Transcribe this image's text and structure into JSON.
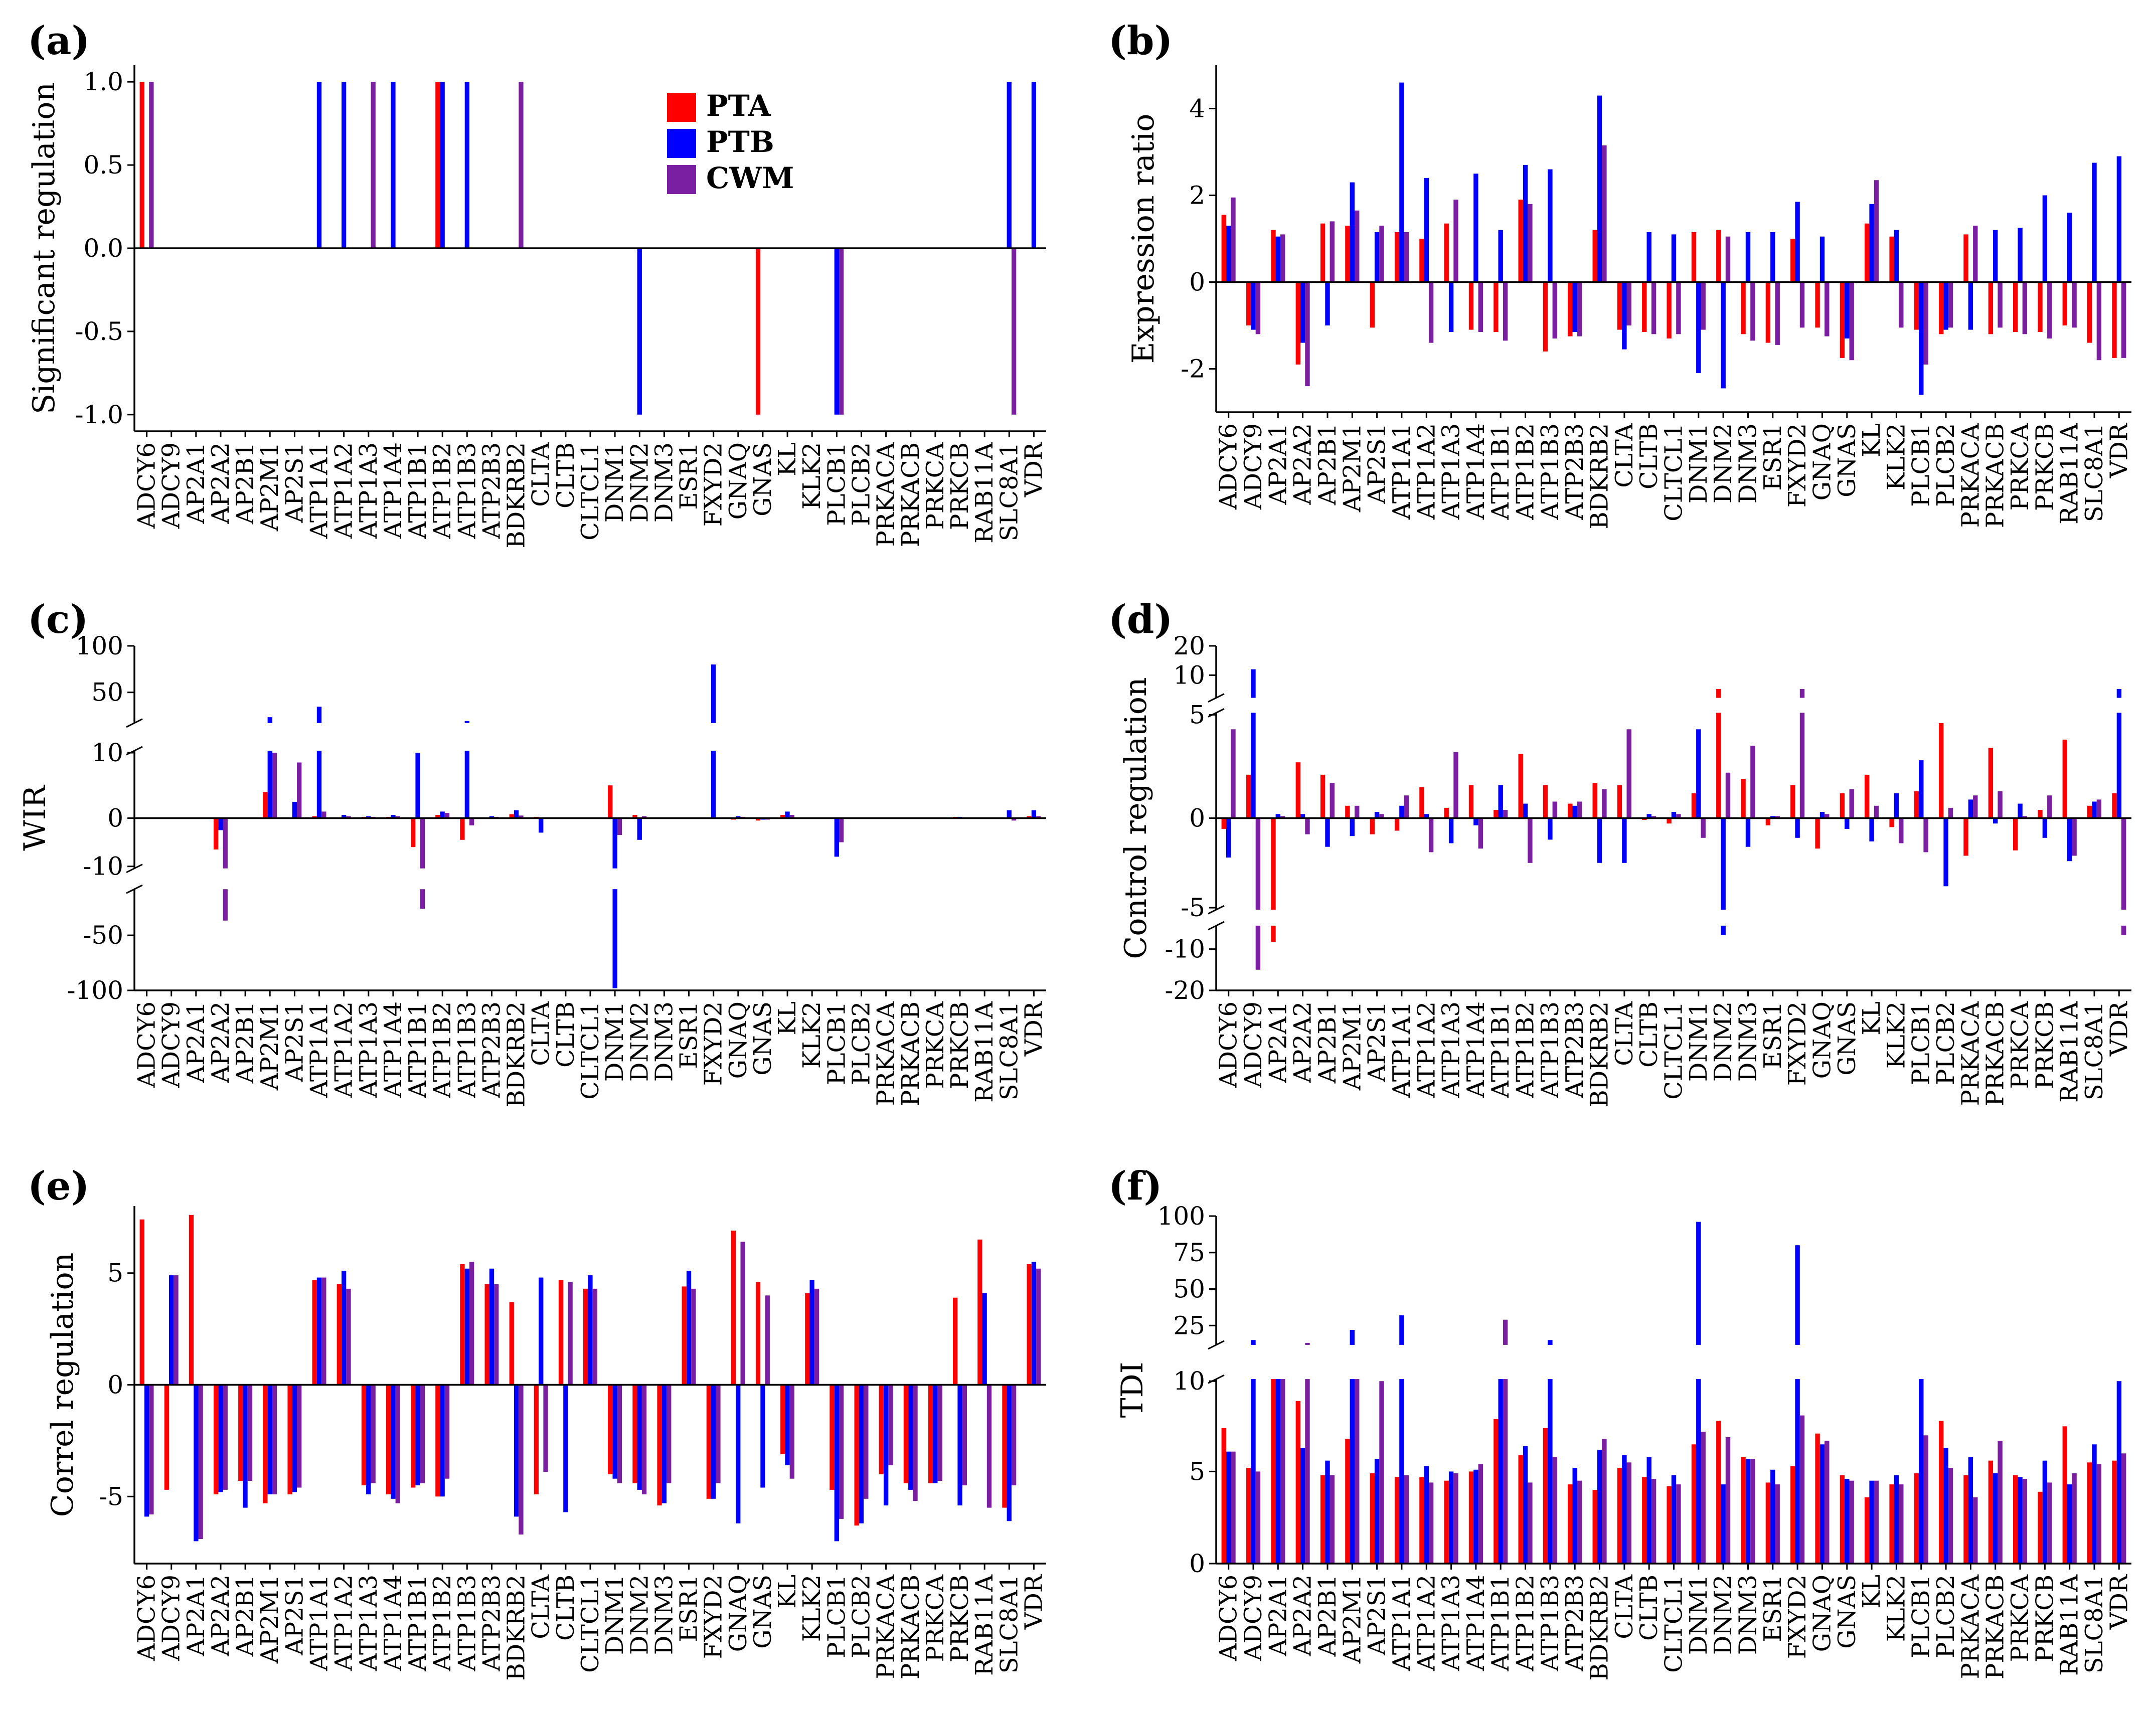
{
  "colors": {
    "PTA": "#ff0000",
    "PTB": "#0000ff",
    "CWM": "#7b1fa2"
  },
  "chart_data": [
    {
      "id": "a",
      "type": "bar",
      "panel_label": "(a)",
      "xlabel": "",
      "ylabel": "Significant regulation",
      "ylim": [
        -1.1,
        1.1
      ],
      "yticks": [
        -1.0,
        -0.5,
        0.0,
        0.5,
        1.0
      ],
      "ytick_labels": [
        "-1.0",
        "-0.5",
        "0.0",
        "0.5",
        "1.0"
      ],
      "legend": {
        "position": "top-center",
        "entries": [
          "PTA",
          "PTB",
          "CWM"
        ]
      },
      "categories": [
        "ADCY6",
        "ADCY9",
        "AP2A1",
        "AP2A2",
        "AP2B1",
        "AP2M1",
        "AP2S1",
        "ATP1A1",
        "ATP1A2",
        "ATP1A3",
        "ATP1A4",
        "ATP1B1",
        "ATP1B2",
        "ATP1B3",
        "ATP2B3",
        "BDKRB2",
        "CLTA",
        "CLTB",
        "CLTCL1",
        "DNM1",
        "DNM2",
        "DNM3",
        "ESR1",
        "FXYD2",
        "GNAQ",
        "GNAS",
        "KL",
        "KLK2",
        "PLCB1",
        "PLCB2",
        "PRKACA",
        "PRKACB",
        "PRKCA",
        "PRKCB",
        "RAB11A",
        "SLC8A1",
        "VDR"
      ],
      "series": [
        {
          "name": "PTA",
          "values": [
            1,
            0,
            0,
            0,
            0,
            0,
            0,
            0,
            0,
            0,
            0,
            0,
            1,
            0,
            0,
            0,
            0,
            0,
            0,
            0,
            0,
            0,
            0,
            0,
            0,
            -1,
            0,
            0,
            0,
            0,
            0,
            0,
            0,
            0,
            0,
            0,
            0
          ]
        },
        {
          "name": "PTB",
          "values": [
            0,
            0,
            0,
            0,
            0,
            0,
            0,
            1,
            1,
            0,
            1,
            0,
            1,
            1,
            0,
            0,
            0,
            0,
            0,
            0,
            -1,
            0,
            0,
            0,
            0,
            0,
            0,
            0,
            -1,
            0,
            0,
            0,
            0,
            0,
            0,
            1,
            1
          ]
        },
        {
          "name": "CWM",
          "values": [
            1,
            0,
            0,
            0,
            0,
            0,
            0,
            0,
            0,
            1,
            0,
            0,
            0,
            0,
            0,
            1,
            0,
            0,
            0,
            0,
            0,
            0,
            0,
            0,
            0,
            0,
            0,
            0,
            -1,
            0,
            0,
            0,
            0,
            0,
            0,
            -1,
            0
          ]
        }
      ]
    },
    {
      "id": "b",
      "type": "bar",
      "panel_label": "(b)",
      "xlabel": "",
      "ylabel": "Expression ratio",
      "ylim": [
        -3,
        5
      ],
      "yticks": [
        -2,
        0,
        2,
        4
      ],
      "ytick_labels": [
        "-2",
        "0",
        "2",
        "4"
      ],
      "categories": [
        "ADCY6",
        "ADCY9",
        "AP2A1",
        "AP2A2",
        "AP2B1",
        "AP2M1",
        "AP2S1",
        "ATP1A1",
        "ATP1A2",
        "ATP1A3",
        "ATP1A4",
        "ATP1B1",
        "ATP1B2",
        "ATP1B3",
        "ATP2B3",
        "BDKRB2",
        "CLTA",
        "CLTB",
        "CLTCL1",
        "DNM1",
        "DNM2",
        "DNM3",
        "ESR1",
        "FXYD2",
        "GNAQ",
        "GNAS",
        "KL",
        "KLK2",
        "PLCB1",
        "PLCB2",
        "PRKACA",
        "PRKACB",
        "PRKCA",
        "PRKCB",
        "RAB11A",
        "SLC8A1",
        "VDR"
      ],
      "series": [
        {
          "name": "PTA",
          "values": [
            1.55,
            -1.0,
            1.2,
            -1.9,
            1.35,
            1.3,
            -1.05,
            1.15,
            1.0,
            1.35,
            -1.1,
            -1.15,
            1.9,
            -1.6,
            -1.25,
            1.2,
            -1.1,
            -1.15,
            -1.3,
            1.15,
            1.2,
            -1.2,
            -1.4,
            1.0,
            -1.05,
            -1.75,
            1.35,
            1.05,
            -1.1,
            -1.2,
            1.1,
            -1.2,
            -1.15,
            -1.15,
            -1.0,
            -1.4,
            -1.75
          ]
        },
        {
          "name": "PTB",
          "values": [
            1.3,
            -1.1,
            1.05,
            -1.4,
            -1.0,
            2.3,
            1.15,
            4.6,
            2.4,
            -1.15,
            2.5,
            1.2,
            2.7,
            2.6,
            -1.15,
            4.3,
            -1.55,
            1.15,
            1.1,
            -2.1,
            -2.45,
            1.15,
            1.15,
            1.85,
            1.05,
            -1.3,
            1.8,
            1.2,
            -2.6,
            -1.1,
            -1.1,
            1.2,
            1.25,
            2.0,
            1.6,
            2.75,
            2.9
          ]
        },
        {
          "name": "CWM",
          "values": [
            1.95,
            -1.2,
            1.1,
            -2.4,
            1.4,
            1.65,
            1.3,
            1.15,
            -1.4,
            1.9,
            -1.15,
            -1.35,
            1.8,
            -1.3,
            -1.25,
            3.15,
            -1.0,
            -1.2,
            -1.2,
            -1.1,
            1.05,
            -1.35,
            -1.45,
            -1.05,
            -1.25,
            -1.8,
            2.35,
            -1.05,
            -1.9,
            -1.05,
            1.3,
            -1.05,
            -1.2,
            -1.3,
            -1.05,
            -1.8,
            -1.75
          ]
        }
      ]
    },
    {
      "id": "c",
      "type": "bar",
      "panel_label": "(c)",
      "xlabel": "",
      "ylabel": "WIR",
      "axis_note": "broken y-axis (breaks at 10/20 and -10/-20)",
      "ylim": [
        -100,
        100
      ],
      "yticks": [
        -100,
        -50,
        -10,
        0,
        10,
        50,
        100
      ],
      "ytick_labels": [
        "-100",
        "-50",
        "-10",
        "0",
        "10",
        "50",
        "100"
      ],
      "categories": [
        "ADCY6",
        "ADCY9",
        "AP2A1",
        "AP2A2",
        "AP2B1",
        "AP2M1",
        "AP2S1",
        "ATP1A1",
        "ATP1A2",
        "ATP1A3",
        "ATP1A4",
        "ATP1B1",
        "ATP1B2",
        "ATP1B3",
        "ATP2B3",
        "BDKRB2",
        "CLTA",
        "CLTB",
        "CLTCL1",
        "DNM1",
        "DNM2",
        "DNM3",
        "ESR1",
        "FXYD2",
        "GNAQ",
        "GNAS",
        "KL",
        "KLK2",
        "PLCB1",
        "PLCB2",
        "PRKACA",
        "PRKACB",
        "PRKCA",
        "PRKCB",
        "RAB11A",
        "SLC8A1",
        "VDR"
      ],
      "series": [
        {
          "name": "PTA",
          "values": [
            0,
            0,
            0,
            -6.5,
            0,
            4,
            0,
            0.3,
            0,
            0.2,
            0.2,
            -6,
            0.5,
            -4.5,
            0,
            0.6,
            0.2,
            0,
            0,
            5,
            0.5,
            0,
            0,
            0,
            -0.3,
            -0.5,
            0.5,
            0,
            0,
            0,
            0,
            0,
            0,
            0.2,
            0,
            0,
            0.3
          ]
        },
        {
          "name": "PTB",
          "values": [
            0,
            0,
            0,
            -2.5,
            0,
            24,
            2.5,
            35,
            0.5,
            0.3,
            0.5,
            10,
            1,
            20,
            0.3,
            1.2,
            -3,
            0,
            0,
            -98,
            -4.5,
            0,
            0,
            80,
            0.3,
            -0.3,
            1,
            0,
            -8,
            0,
            0,
            0,
            0,
            0.2,
            0,
            1.2,
            1.2
          ]
        },
        {
          "name": "CWM",
          "values": [
            0,
            0,
            0,
            -40,
            0,
            10,
            8.5,
            1,
            0.3,
            0.2,
            0.3,
            -32,
            0.8,
            -1.5,
            0.2,
            0.4,
            0,
            0,
            0,
            -3.5,
            0.3,
            0,
            0,
            0,
            0.2,
            -0.3,
            0.5,
            0,
            -5,
            0,
            0,
            0,
            0,
            0,
            0,
            -0.5,
            0.3
          ]
        }
      ]
    },
    {
      "id": "d",
      "type": "bar",
      "panel_label": "(d)",
      "xlabel": "",
      "ylabel": "Control regulation",
      "axis_note": "broken y-axis (breaks at 5/7 and -5/-7)",
      "ylim": [
        -20,
        20
      ],
      "yticks": [
        -20,
        -10,
        -5,
        0,
        5,
        10,
        20
      ],
      "ytick_labels": [
        "-20",
        "-10",
        "-5",
        "0",
        "5",
        "10",
        "20"
      ],
      "categories": [
        "ADCY6",
        "ADCY9",
        "AP2A1",
        "AP2A2",
        "AP2B1",
        "AP2M1",
        "AP2S1",
        "ATP1A1",
        "ATP1A2",
        "ATP1A3",
        "ATP1A4",
        "ATP1B1",
        "ATP1B2",
        "ATP1B3",
        "ATP2B3",
        "BDKRB2",
        "CLTA",
        "CLTB",
        "CLTCL1",
        "DNM1",
        "DNM2",
        "DNM3",
        "ESR1",
        "FXYD2",
        "GNAQ",
        "GNAS",
        "KL",
        "KLK2",
        "PLCB1",
        "PLCB2",
        "PRKACA",
        "PRKACB",
        "PRKCA",
        "PRKCB",
        "RAB11A",
        "SLC8A1",
        "VDR"
      ],
      "series": [
        {
          "name": "PTA",
          "values": [
            -0.6,
            2.1,
            -9,
            2.7,
            2.1,
            0.6,
            -0.9,
            -0.7,
            1.5,
            0.5,
            1.6,
            0.4,
            3.1,
            1.6,
            0.7,
            1.7,
            1.6,
            -0.1,
            -0.3,
            1.2,
            8,
            1.9,
            -0.4,
            1.6,
            -1.7,
            1.2,
            2.1,
            -0.5,
            1.3,
            4.6,
            -2.1,
            3.4,
            -1.8,
            0.4,
            3.8,
            0.6,
            1.2
          ]
        },
        {
          "name": "PTB",
          "values": [
            -2.2,
            12,
            0.2,
            0.2,
            -1.6,
            -1,
            0.3,
            0.6,
            0.2,
            -1.4,
            -0.4,
            1.6,
            0.7,
            -1.2,
            0.6,
            -2.5,
            -2.5,
            0.2,
            0.3,
            4.3,
            -8,
            -1.6,
            0.1,
            -1.1,
            0.3,
            -0.6,
            -1.3,
            1.2,
            2.8,
            -3.8,
            0.9,
            -0.3,
            0.7,
            -1.1,
            -2.4,
            0.8,
            8
          ]
        },
        {
          "name": "CWM",
          "values": [
            4.3,
            -15,
            0.1,
            -0.9,
            1.7,
            0.6,
            0.2,
            1.1,
            -1.9,
            3.2,
            -1.7,
            0.4,
            -2.5,
            0.8,
            0.8,
            1.4,
            4.3,
            0.1,
            0.2,
            -1.1,
            2.2,
            3.5,
            0.1,
            8,
            0.2,
            1.4,
            0.6,
            -1.4,
            -1.9,
            0.5,
            1.1,
            1.3,
            0.1,
            1.1,
            -2.1,
            0.9,
            -8
          ]
        }
      ]
    },
    {
      "id": "e",
      "type": "bar",
      "panel_label": "(e)",
      "xlabel": "",
      "ylabel": "Correl regulation",
      "ylim": [
        -8,
        8
      ],
      "yticks": [
        -5,
        0,
        5
      ],
      "ytick_labels": [
        "-5",
        "0",
        "5"
      ],
      "categories": [
        "ADCY6",
        "ADCY9",
        "AP2A1",
        "AP2A2",
        "AP2B1",
        "AP2M1",
        "AP2S1",
        "ATP1A1",
        "ATP1A2",
        "ATP1A3",
        "ATP1A4",
        "ATP1B1",
        "ATP1B2",
        "ATP1B3",
        "ATP2B3",
        "BDKRB2",
        "CLTA",
        "CLTB",
        "CLTCL1",
        "DNM1",
        "DNM2",
        "DNM3",
        "ESR1",
        "FXYD2",
        "GNAQ",
        "GNAS",
        "KL",
        "KLK2",
        "PLCB1",
        "PLCB2",
        "PRKACA",
        "PRKACB",
        "PRKCA",
        "PRKCB",
        "RAB11A",
        "SLC8A1",
        "VDR"
      ],
      "series": [
        {
          "name": "PTA",
          "values": [
            7.4,
            -4.7,
            7.6,
            -4.9,
            -4.3,
            -5.3,
            -4.9,
            4.7,
            4.5,
            -4.5,
            -4.9,
            -4.6,
            -5,
            5.4,
            4.5,
            3.7,
            -4.9,
            4.7,
            4.3,
            -4,
            -4.4,
            -5.4,
            4.4,
            -5.1,
            6.9,
            4.6,
            -3.1,
            4.1,
            -4.7,
            -6.3,
            -4,
            -4.4,
            -4.4,
            3.9,
            6.5,
            -5.5,
            5.4
          ]
        },
        {
          "name": "PTB",
          "values": [
            -5.9,
            4.9,
            -7,
            -4.8,
            -5.5,
            -4.9,
            -4.8,
            4.8,
            5.1,
            -4.9,
            -5.1,
            -4.5,
            -5,
            5.2,
            5.2,
            -5.9,
            4.8,
            -5.7,
            4.9,
            -4.2,
            -4.7,
            -5.3,
            5.1,
            -5.1,
            -6.2,
            -4.6,
            -3.6,
            4.7,
            -7,
            -6.2,
            -5.4,
            -4.7,
            -4.4,
            -5.4,
            4.1,
            -6.1,
            5.5
          ]
        },
        {
          "name": "CWM",
          "values": [
            -5.8,
            4.9,
            -6.9,
            -4.7,
            -4.3,
            -4.9,
            -4.6,
            4.8,
            4.3,
            -4.4,
            -5.3,
            -4.4,
            -4.2,
            5.5,
            4.5,
            -6.7,
            -3.9,
            4.6,
            4.3,
            -4.4,
            -4.9,
            -4.4,
            4.3,
            -4.4,
            6.4,
            4,
            -4.2,
            4.3,
            -6,
            -5.1,
            -3.6,
            -5.2,
            -4.3,
            -4.5,
            -5.5,
            -4.5,
            5.2
          ]
        }
      ]
    },
    {
      "id": "f",
      "type": "bar",
      "panel_label": "(f)",
      "xlabel": "",
      "ylabel": "TDI",
      "axis_note": "broken y-axis (break between 10 and 13)",
      "ylim": [
        0,
        100
      ],
      "yticks": [
        0,
        5,
        10,
        25,
        50,
        75,
        100
      ],
      "ytick_labels": [
        "0",
        "5",
        "10",
        "25",
        "50",
        "75",
        "100"
      ],
      "categories": [
        "ADCY6",
        "ADCY9",
        "AP2A1",
        "AP2A2",
        "AP2B1",
        "AP2M1",
        "AP2S1",
        "ATP1A1",
        "ATP1A2",
        "ATP1A3",
        "ATP1A4",
        "ATP1B1",
        "ATP1B2",
        "ATP1B3",
        "ATP2B3",
        "BDKRB2",
        "CLTA",
        "CLTB",
        "CLTCL1",
        "DNM1",
        "DNM2",
        "DNM3",
        "ESR1",
        "FXYD2",
        "GNAQ",
        "GNAS",
        "KL",
        "KLK2",
        "PLCB1",
        "PLCB2",
        "PRKACA",
        "PRKACB",
        "PRKCA",
        "PRKCB",
        "RAB11A",
        "SLC8A1",
        "VDR"
      ],
      "series": [
        {
          "name": "PTA",
          "values": [
            7.4,
            5.2,
            11,
            8.9,
            4.8,
            6.8,
            4.9,
            4.7,
            4.7,
            4.5,
            5,
            7.9,
            5.9,
            7.4,
            4.3,
            4,
            5.2,
            4.7,
            4.2,
            6.5,
            7.8,
            5.8,
            4.4,
            5.3,
            7.1,
            4.8,
            3.6,
            4.3,
            4.9,
            7.8,
            4.8,
            5.6,
            4.8,
            3.9,
            7.5,
            5.5,
            5.6
          ]
        },
        {
          "name": "PTB",
          "values": [
            6.1,
            15,
            11,
            6.3,
            5.6,
            22,
            5.7,
            32,
            5.3,
            5,
            5.1,
            11,
            6.4,
            15,
            5.2,
            6.2,
            5.9,
            5.8,
            4.8,
            96,
            4.3,
            5.7,
            5.1,
            80,
            6.5,
            4.6,
            4.5,
            4.8,
            11,
            6.3,
            5.8,
            4.9,
            4.7,
            5.6,
            4.3,
            6.5,
            10
          ]
        },
        {
          "name": "CWM",
          "values": [
            6.1,
            5,
            12,
            13,
            4.8,
            11,
            10,
            4.8,
            4.4,
            4.9,
            5.4,
            29,
            4.4,
            5.8,
            4.5,
            6.8,
            5.5,
            4.6,
            4.3,
            7.2,
            6.9,
            5.7,
            4.3,
            8.1,
            6.7,
            4.5,
            4.5,
            4.3,
            7,
            5.2,
            3.6,
            6.7,
            4.6,
            4.4,
            4.9,
            5.4,
            6
          ]
        }
      ]
    }
  ]
}
